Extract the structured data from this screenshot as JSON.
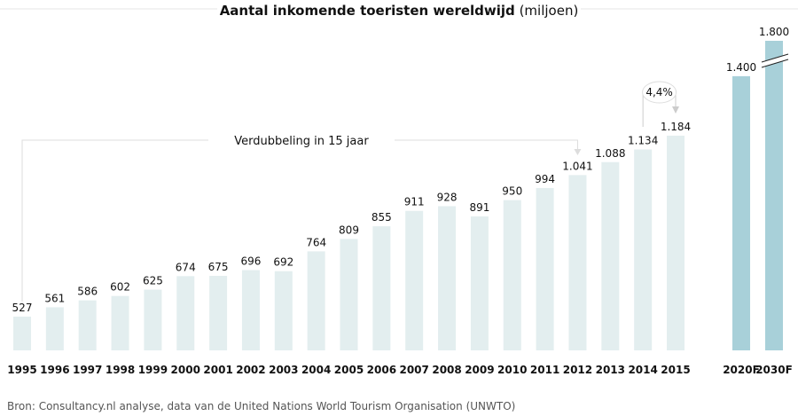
{
  "chart_data": {
    "type": "bar",
    "title": "Aantal inkomende toeristen wereldwijd",
    "title_unit": "(miljoen)",
    "categories": [
      "1995",
      "1996",
      "1997",
      "1998",
      "1999",
      "2000",
      "2001",
      "2002",
      "2003",
      "2004",
      "2005",
      "2006",
      "2007",
      "2008",
      "2009",
      "2010",
      "2011",
      "2012",
      "2013",
      "2014",
      "2015",
      "2020F",
      "2030F"
    ],
    "values": [
      527,
      561,
      586,
      602,
      625,
      674,
      675,
      696,
      692,
      764,
      809,
      855,
      911,
      928,
      891,
      950,
      994,
      1041,
      1088,
      1134,
      1184,
      1400,
      1800
    ],
    "value_labels": [
      "527",
      "561",
      "586",
      "602",
      "625",
      "674",
      "675",
      "696",
      "692",
      "764",
      "809",
      "855",
      "911",
      "928",
      "891",
      "950",
      "994",
      "1.041",
      "1.088",
      "1.134",
      "1.184",
      "1.400",
      "1.800"
    ],
    "forecast": [
      "2020F",
      "2030F"
    ],
    "axis_break_on": "2030F",
    "annotations": [
      {
        "text": "Verdubbeling in 15 jaar",
        "from": "1995",
        "to": "2012"
      },
      {
        "text": "4,4%",
        "from": "2014",
        "to": "2015"
      }
    ],
    "colors": {
      "actual": "#e3eeef",
      "forecast": "#a8d0d9"
    }
  },
  "source": "Bron: Consultancy.nl analyse, data van de United Nations World Tourism Organisation (UNWTO)"
}
